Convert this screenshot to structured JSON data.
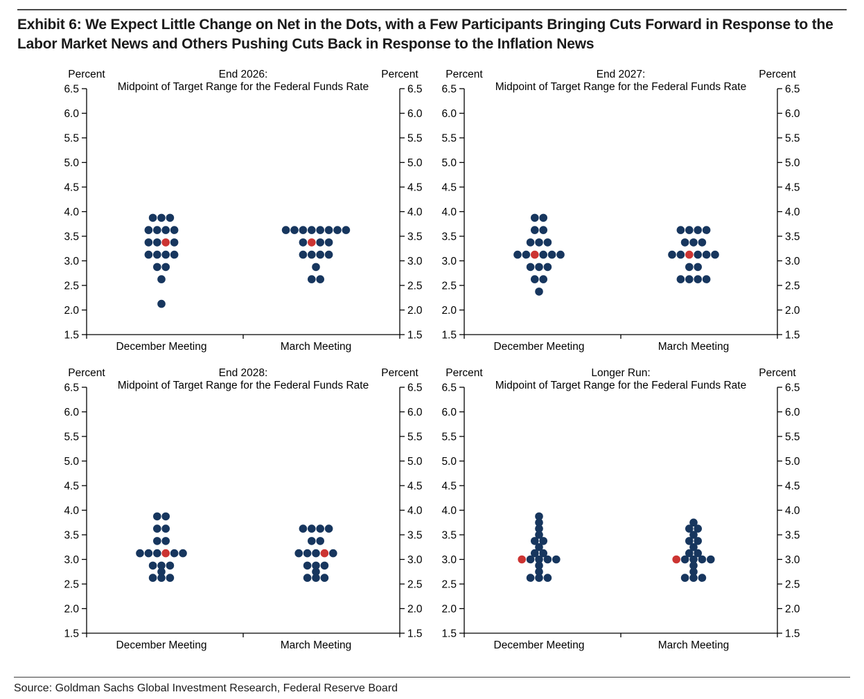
{
  "page": {
    "title_line1": "Exhibit 6: We Expect Little Change on Net in the Dots, with a Few Participants Bringing Cuts Forward in Response to the",
    "title_line2": "Labor Market News and Others Pushing Cuts Back in Response to the Inflation News",
    "source": "Source: Goldman Sachs Global Investment Research, Federal Reserve Board"
  },
  "colors": {
    "dot_navy": "#17365E",
    "dot_red": "#CC3432",
    "axis": "#000000",
    "text": "#000000",
    "title_text": "#1b1b1b"
  },
  "chart_data": [
    {
      "id": "end-2026",
      "type": "scatter",
      "title_line1": "End 2026:",
      "title_line2": "Midpoint of Target Range for the Federal Funds Rate",
      "unit_label_left": "Percent",
      "unit_label_right": "Percent",
      "ylim": [
        1.5,
        6.5
      ],
      "yticks": [
        6.5,
        6.0,
        5.5,
        5.0,
        4.5,
        4.0,
        3.5,
        3.0,
        2.5,
        2.0,
        1.5
      ],
      "categories": [
        "December Meeting",
        "March Meeting"
      ],
      "series": [
        {
          "meeting": "December Meeting",
          "red_value": 3.375,
          "rows": [
            {
              "value": 3.875,
              "count": 3
            },
            {
              "value": 3.625,
              "count": 4
            },
            {
              "value": 3.375,
              "count": 4,
              "red_index": 2
            },
            {
              "value": 3.125,
              "count": 4
            },
            {
              "value": 2.875,
              "count": 2
            },
            {
              "value": 2.625,
              "count": 1
            },
            {
              "value": 2.125,
              "count": 1
            }
          ]
        },
        {
          "meeting": "March Meeting",
          "red_value": 3.375,
          "rows": [
            {
              "value": 3.625,
              "count": 8
            },
            {
              "value": 3.375,
              "count": 4,
              "red_index": 1
            },
            {
              "value": 3.125,
              "count": 4
            },
            {
              "value": 2.875,
              "count": 1
            },
            {
              "value": 2.625,
              "count": 2
            }
          ]
        }
      ]
    },
    {
      "id": "end-2027",
      "type": "scatter",
      "title_line1": "End 2027:",
      "title_line2": "Midpoint of Target Range for the Federal Funds Rate",
      "unit_label_left": "Percent",
      "unit_label_right": "Percent",
      "ylim": [
        1.5,
        6.5
      ],
      "yticks": [
        6.5,
        6.0,
        5.5,
        5.0,
        4.5,
        4.0,
        3.5,
        3.0,
        2.5,
        2.0,
        1.5
      ],
      "categories": [
        "December Meeting",
        "March Meeting"
      ],
      "series": [
        {
          "meeting": "December Meeting",
          "red_value": 3.125,
          "rows": [
            {
              "value": 3.875,
              "count": 2
            },
            {
              "value": 3.625,
              "count": 2
            },
            {
              "value": 3.375,
              "count": 3
            },
            {
              "value": 3.125,
              "count": 6,
              "red_index": 2
            },
            {
              "value": 2.875,
              "count": 3
            },
            {
              "value": 2.625,
              "count": 2
            },
            {
              "value": 2.375,
              "count": 1
            }
          ]
        },
        {
          "meeting": "March Meeting",
          "red_value": 3.125,
          "rows": [
            {
              "value": 3.625,
              "count": 4
            },
            {
              "value": 3.375,
              "count": 3
            },
            {
              "value": 3.125,
              "count": 6,
              "red_index": 2
            },
            {
              "value": 2.875,
              "count": 2
            },
            {
              "value": 2.625,
              "count": 4
            }
          ]
        }
      ]
    },
    {
      "id": "end-2028",
      "type": "scatter",
      "title_line1": "End 2028:",
      "title_line2": "Midpoint of Target Range for the Federal Funds Rate",
      "unit_label_left": "Percent",
      "unit_label_right": "Percent",
      "ylim": [
        1.5,
        6.5
      ],
      "yticks": [
        6.5,
        6.0,
        5.5,
        5.0,
        4.5,
        4.0,
        3.5,
        3.0,
        2.5,
        2.0,
        1.5
      ],
      "categories": [
        "December Meeting",
        "March Meeting"
      ],
      "series": [
        {
          "meeting": "December Meeting",
          "red_value": 3.125,
          "rows": [
            {
              "value": 3.875,
              "count": 2
            },
            {
              "value": 3.625,
              "count": 2
            },
            {
              "value": 3.375,
              "count": 2
            },
            {
              "value": 3.125,
              "count": 6,
              "red_index": 3
            },
            {
              "value": 2.875,
              "count": 3
            },
            {
              "value": 2.75,
              "count": 1
            },
            {
              "value": 2.625,
              "count": 3
            }
          ]
        },
        {
          "meeting": "March Meeting",
          "red_value": 3.125,
          "rows": [
            {
              "value": 3.625,
              "count": 4
            },
            {
              "value": 3.375,
              "count": 2
            },
            {
              "value": 3.125,
              "count": 5,
              "red_index": 3
            },
            {
              "value": 2.875,
              "count": 3
            },
            {
              "value": 2.75,
              "count": 1
            },
            {
              "value": 2.625,
              "count": 3
            }
          ]
        }
      ]
    },
    {
      "id": "longer-run",
      "type": "scatter",
      "title_line1": "Longer Run:",
      "title_line2": "Midpoint of Target Range for the Federal Funds Rate",
      "unit_label_left": "Percent",
      "unit_label_right": "Percent",
      "ylim": [
        1.5,
        6.5
      ],
      "yticks": [
        6.5,
        6.0,
        5.5,
        5.0,
        4.5,
        4.0,
        3.5,
        3.0,
        2.5,
        2.0,
        1.5
      ],
      "categories": [
        "December Meeting",
        "March Meeting"
      ],
      "series": [
        {
          "meeting": "December Meeting",
          "red_value": 3.0,
          "rows": [
            {
              "value": 3.875,
              "count": 1
            },
            {
              "value": 3.75,
              "count": 1
            },
            {
              "value": 3.625,
              "count": 1
            },
            {
              "value": 3.5,
              "count": 1
            },
            {
              "value": 3.375,
              "count": 2
            },
            {
              "value": 3.25,
              "count": 1
            },
            {
              "value": 3.125,
              "count": 2
            },
            {
              "value": 3.0,
              "count": 5,
              "red_index": 0
            },
            {
              "value": 2.875,
              "count": 1
            },
            {
              "value": 2.75,
              "count": 1
            },
            {
              "value": 2.625,
              "count": 3
            }
          ]
        },
        {
          "meeting": "March Meeting",
          "red_value": 3.0,
          "rows": [
            {
              "value": 3.75,
              "count": 1
            },
            {
              "value": 3.625,
              "count": 2
            },
            {
              "value": 3.5,
              "count": 1
            },
            {
              "value": 3.375,
              "count": 2
            },
            {
              "value": 3.25,
              "count": 1
            },
            {
              "value": 3.125,
              "count": 2
            },
            {
              "value": 3.0,
              "count": 5,
              "red_index": 0
            },
            {
              "value": 2.875,
              "count": 1
            },
            {
              "value": 2.75,
              "count": 1
            },
            {
              "value": 2.625,
              "count": 3
            }
          ]
        }
      ]
    }
  ]
}
